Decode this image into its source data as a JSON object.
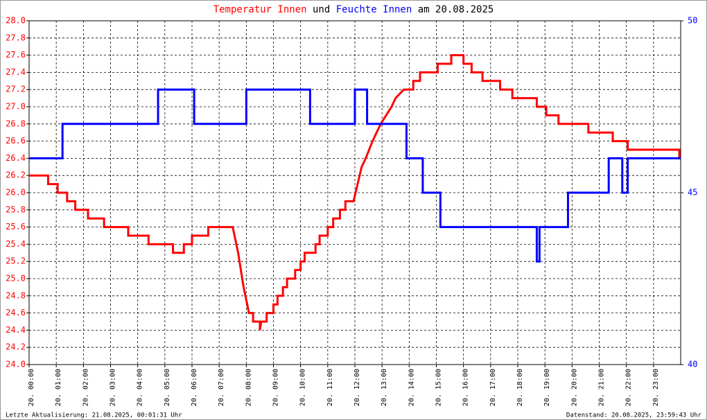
{
  "chart_data": {
    "type": "line",
    "title_parts": [
      "und",
      "am 20.08.2025"
    ],
    "footer_left": "Letzte Aktualisierung: 21.08.2025, 00:01:31 Uhr",
    "footer_right": "Datenstand: 20.08.2025, 23:59:43 Uhr",
    "xlim": [
      0,
      24
    ],
    "xticks": [
      {
        "value": 0,
        "label": "20. 00:00"
      },
      {
        "value": 1,
        "label": "20. 01:00"
      },
      {
        "value": 2,
        "label": "20. 02:00"
      },
      {
        "value": 3,
        "label": "20. 03:00"
      },
      {
        "value": 4,
        "label": "20. 04:00"
      },
      {
        "value": 5,
        "label": "20. 05:00"
      },
      {
        "value": 6,
        "label": "20. 06:00"
      },
      {
        "value": 7,
        "label": "20. 07:00"
      },
      {
        "value": 8,
        "label": "20. 08:00"
      },
      {
        "value": 9,
        "label": "20. 09:00"
      },
      {
        "value": 10,
        "label": "20. 10:00"
      },
      {
        "value": 11,
        "label": "20. 11:00"
      },
      {
        "value": 12,
        "label": "20. 12:00"
      },
      {
        "value": 13,
        "label": "20. 13:00"
      },
      {
        "value": 14,
        "label": "20. 14:00"
      },
      {
        "value": 15,
        "label": "20. 15:00"
      },
      {
        "value": 16,
        "label": "20. 16:00"
      },
      {
        "value": 17,
        "label": "20. 17:00"
      },
      {
        "value": 18,
        "label": "20. 18:00"
      },
      {
        "value": 19,
        "label": "20. 19:00"
      },
      {
        "value": 20,
        "label": "20. 20:00"
      },
      {
        "value": 21,
        "label": "20. 21:00"
      },
      {
        "value": 22,
        "label": "20. 22:00"
      },
      {
        "value": 23,
        "label": "20. 23:00"
      }
    ],
    "ylim": [
      24,
      28
    ],
    "yticks": [
      {
        "value": 24,
        "label": "24.0"
      },
      {
        "value": 24.2,
        "label": "24.2"
      },
      {
        "value": 24.4,
        "label": "24.4"
      },
      {
        "value": 24.6,
        "label": "24.6"
      },
      {
        "value": 24.8,
        "label": "24.8"
      },
      {
        "value": 25,
        "label": "25.0"
      },
      {
        "value": 25.2,
        "label": "25.2"
      },
      {
        "value": 25.4,
        "label": "25.4"
      },
      {
        "value": 25.6,
        "label": "25.6"
      },
      {
        "value": 25.8,
        "label": "25.8"
      },
      {
        "value": 26,
        "label": "26.0"
      },
      {
        "value": 26.2,
        "label": "26.2"
      },
      {
        "value": 26.4,
        "label": "26.4"
      },
      {
        "value": 26.6,
        "label": "26.6"
      },
      {
        "value": 26.8,
        "label": "26.8"
      },
      {
        "value": 27,
        "label": "27.0"
      },
      {
        "value": 27.2,
        "label": "27.2"
      },
      {
        "value": 27.4,
        "label": "27.4"
      },
      {
        "value": 27.6,
        "label": "27.6"
      },
      {
        "value": 27.8,
        "label": "27.8"
      },
      {
        "value": 28,
        "label": "28.0"
      }
    ],
    "y2lim": [
      40,
      50
    ],
    "y2ticks": [
      40,
      45,
      50
    ],
    "grid": true,
    "series": [
      {
        "name": "Temperatur Innen",
        "color": "#ff0000",
        "x": [
          0,
          0.7,
          0.7,
          1.05,
          1.05,
          1.4,
          1.4,
          1.7,
          1.7,
          2.17,
          2.17,
          2.76,
          2.76,
          3.65,
          3.65,
          4.4,
          4.4,
          5.3,
          5.3,
          5.7,
          5.7,
          6.0,
          6.0,
          6.6,
          6.6,
          7.5,
          7.7,
          7.9,
          8.1,
          8.25,
          8.25,
          8.5,
          8.5,
          8.55,
          8.75,
          8.75,
          9.0,
          9.0,
          9.15,
          9.15,
          9.35,
          9.35,
          9.5,
          9.5,
          9.8,
          9.8,
          10.0,
          10.0,
          10.15,
          10.15,
          10.55,
          10.55,
          10.7,
          10.7,
          11.0,
          11.0,
          11.2,
          11.2,
          11.45,
          11.45,
          11.65,
          11.65,
          11.95,
          12.1,
          12.25,
          12.4,
          12.65,
          12.95,
          13.35,
          13.5,
          13.8,
          14.15,
          14.15,
          14.4,
          14.4,
          15.05,
          15.05,
          15.55,
          15.55,
          16.0,
          16.0,
          16.3,
          16.3,
          16.7,
          16.7,
          17.35,
          17.35,
          17.8,
          17.8,
          18.7,
          18.7,
          19.05,
          19.05,
          19.5,
          19.5,
          20.6,
          20.6,
          21.5,
          21.5,
          22.05,
          22.05,
          23.95,
          23.95,
          24
        ],
        "values": [
          26.2,
          26.2,
          26.1,
          26.1,
          26.0,
          26.0,
          25.9,
          25.9,
          25.8,
          25.8,
          25.7,
          25.7,
          25.6,
          25.6,
          25.5,
          25.5,
          25.4,
          25.4,
          25.3,
          25.3,
          25.4,
          25.4,
          25.5,
          25.5,
          25.6,
          25.6,
          25.3,
          24.9,
          24.6,
          24.6,
          24.5,
          24.5,
          24.4,
          24.5,
          24.5,
          24.6,
          24.6,
          24.7,
          24.7,
          24.8,
          24.8,
          24.9,
          24.9,
          25.0,
          25.0,
          25.1,
          25.1,
          25.2,
          25.2,
          25.3,
          25.3,
          25.4,
          25.4,
          25.5,
          25.5,
          25.6,
          25.6,
          25.7,
          25.7,
          25.8,
          25.8,
          25.9,
          25.9,
          26.1,
          26.3,
          26.4,
          26.6,
          26.8,
          27.0,
          27.1,
          27.2,
          27.2,
          27.3,
          27.3,
          27.4,
          27.4,
          27.5,
          27.5,
          27.6,
          27.6,
          27.5,
          27.5,
          27.4,
          27.4,
          27.3,
          27.3,
          27.2,
          27.2,
          27.1,
          27.1,
          27.0,
          27.0,
          26.9,
          26.9,
          26.8,
          26.8,
          26.7,
          26.7,
          26.6,
          26.6,
          26.5,
          26.5,
          26.4,
          26.4
        ]
      },
      {
        "name": "Feuchte Innen",
        "color": "#0000ff",
        "axis": "y2",
        "x": [
          0,
          1.23,
          1.23,
          4.75,
          4.75,
          6.08,
          6.08,
          8.0,
          8.0,
          10.35,
          10.35,
          12.0,
          12.0,
          12.45,
          12.45,
          13.9,
          13.9,
          14.5,
          14.5,
          15.15,
          15.15,
          18.7,
          18.7,
          18.8,
          18.8,
          19.85,
          19.85,
          21.35,
          21.35,
          21.85,
          21.85,
          22.05,
          22.05,
          24
        ],
        "values": [
          46,
          46,
          47,
          47,
          48,
          48,
          47,
          47,
          48,
          48,
          47,
          47,
          48,
          48,
          47,
          47,
          46,
          46,
          45,
          45,
          44,
          44,
          43,
          43,
          44,
          44,
          45,
          45,
          46,
          46,
          45,
          45,
          46,
          46
        ]
      }
    ]
  }
}
